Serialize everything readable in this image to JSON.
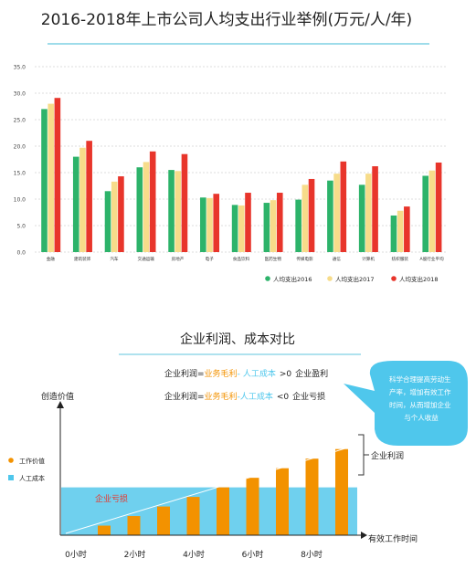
{
  "colors": {
    "s2016": "#2db36a",
    "s2017": "#f7dc8a",
    "s2018": "#e8352b",
    "divider": "#7fd1e3",
    "grid": "#bbbbbb",
    "labor_area": "#6fd0ee",
    "value_bar": "#f39200",
    "bubble": "#4fc7ec",
    "axis_text": "#222222",
    "formula_orange": "#f39200",
    "formula_blue": "#4fc7ec",
    "loss_red": "#e8352b"
  },
  "chart_data": [
    {
      "type": "bar",
      "title": "2016-2018年上市公司人均支出行业举例(万元/人/年)",
      "ylim": [
        0,
        35
      ],
      "yticks": [
        "35.0",
        "30.0",
        "25.0",
        "20.0",
        "15.0",
        "10.0",
        "5.0",
        "0.0"
      ],
      "categories": [
        "金融",
        "建筑装饰",
        "汽车",
        "交通运输",
        "房地产",
        "电子",
        "食品饮料",
        "医药生物",
        "传媒电影",
        "通信",
        "计算机",
        "纺织服装",
        "A股行业平均"
      ],
      "series": [
        {
          "name": "人均支出2016",
          "values": [
            27.0,
            18.0,
            11.5,
            16.0,
            15.5,
            10.3,
            8.9,
            9.3,
            9.9,
            13.5,
            12.7,
            6.9,
            14.4
          ]
        },
        {
          "name": "人均支出2017",
          "values": [
            28.0,
            19.7,
            13.3,
            17.0,
            15.3,
            10.2,
            8.8,
            9.8,
            12.7,
            14.8,
            14.8,
            7.8,
            15.4
          ]
        },
        {
          "name": "人均支出2018",
          "values": [
            29.1,
            21.0,
            14.3,
            19.0,
            18.5,
            11.0,
            11.2,
            11.2,
            13.8,
            17.1,
            16.2,
            8.6,
            16.9
          ]
        }
      ],
      "legend_position": "bottom-right",
      "grid": true
    },
    {
      "type": "bar",
      "title": "企业利润、成本对比",
      "ylabel": "创造价值",
      "xlabel": "有效工作时间",
      "x_ticks": [
        "0小时",
        "2小时",
        "4小时",
        "6小时",
        "8小时"
      ],
      "series": [
        {
          "name": "工作价值",
          "values": [
            1,
            2,
            3,
            4,
            5,
            6,
            7,
            8,
            9
          ]
        },
        {
          "name": "人工成本",
          "values": [
            5
          ]
        }
      ],
      "value_max": 10.5,
      "legend_position": "left"
    }
  ],
  "formulas": {
    "profit": {
      "prefix": "企业利润=",
      "gross": "业务毛利",
      "minus": "-",
      "cost": "人工成本",
      "cmp": ">0",
      "result": "企业盈利"
    },
    "loss": {
      "prefix": "企业利润=",
      "gross": "业务毛利",
      "minus": "-",
      "cost": "人工成本",
      "cmp": "<0",
      "result": "企业亏损"
    }
  },
  "bubble_lines": [
    "科学合理提高劳动生",
    "产率，增加有效工作",
    "时间，从而增加企业",
    "与个人收益"
  ],
  "label_loss": "企业亏损",
  "label_profit": "企业利润"
}
